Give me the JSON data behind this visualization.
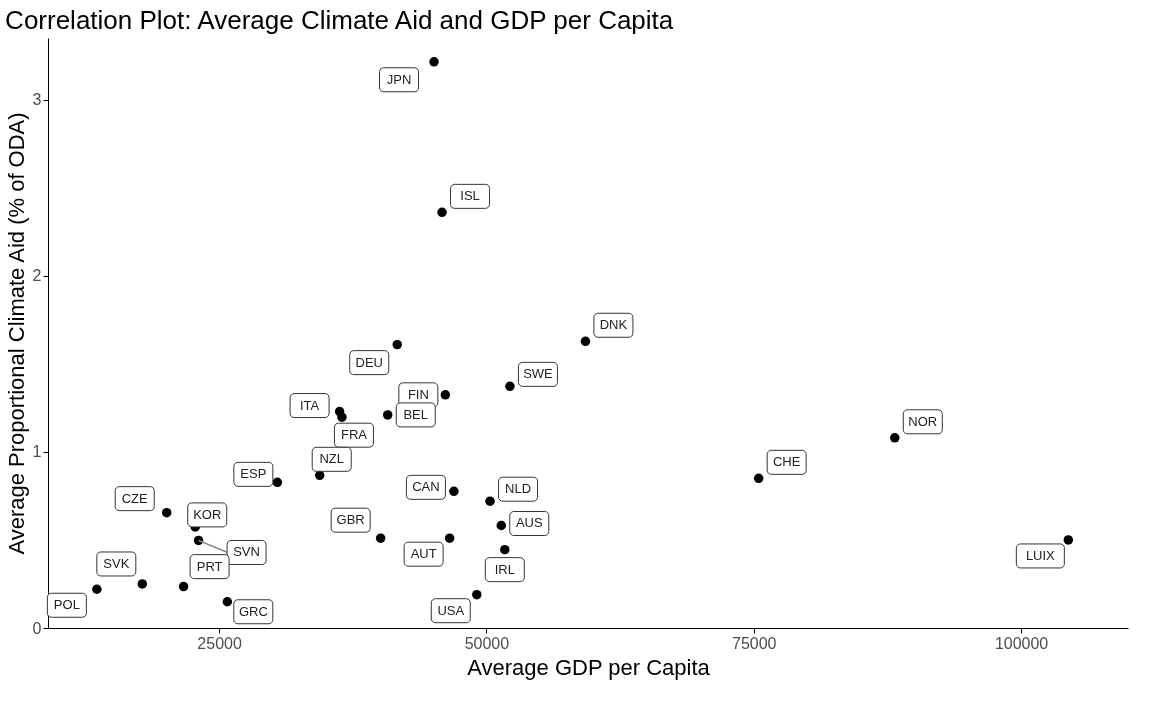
{
  "chart_data": {
    "type": "scatter",
    "title": "Correlation Plot: Average Climate Aid and GDP per Capita",
    "xlabel": "Average GDP per Capita",
    "ylabel": "Average Proportional Climate Aid (% of ODA)",
    "x": [
      45100,
      45850,
      59260,
      41660,
      52200,
      46160,
      36270,
      40770,
      36490,
      88190,
      75460,
      34410,
      46960,
      30450,
      50340,
      20100,
      22770,
      51390,
      40110,
      46560,
      104420,
      23080,
      51720,
      17820,
      21680,
      13570,
      49100,
      25770
    ],
    "series": [
      {
        "color": "#000000",
        "values": [
          3.215,
          2.36,
          1.628,
          1.609,
          1.372,
          1.324,
          1.229,
          1.21,
          1.197,
          1.08,
          0.85,
          0.867,
          0.776,
          0.827,
          0.72,
          0.655,
          0.574,
          0.582,
          0.51,
          0.51,
          0.5,
          0.497,
          0.445,
          0.25,
          0.235,
          0.22,
          0.189,
          0.149
        ],
        "value_labels": [
          "JPN",
          "ISL",
          "DNK",
          "DEU",
          "SWE",
          "FIN",
          "ITA",
          "BEL",
          "FRA",
          "NOR",
          "CHE",
          "NZL",
          "CAN",
          "ESP",
          "NLD",
          "CZE",
          "KOR",
          "AUS",
          "GBR",
          "AUT",
          "LUIX",
          "SVN",
          "IRL",
          "SVK",
          "PRT",
          "POL",
          "USA",
          "GRC"
        ]
      }
    ],
    "xlim": [
      9000,
      110000
    ],
    "xticks": [
      {
        "value": 25000,
        "label": "25000"
      },
      {
        "value": 50000,
        "label": "50000"
      },
      {
        "value": 75000,
        "label": "75000"
      },
      {
        "value": 100000,
        "label": "100000"
      }
    ],
    "ylim": [
      0,
      3.35
    ],
    "yticks": [
      {
        "value": 0,
        "label": "0"
      },
      {
        "value": 1,
        "label": "1"
      },
      {
        "value": 2,
        "label": "2"
      },
      {
        "value": 3,
        "label": "3"
      }
    ],
    "grid": false,
    "marker": "circle"
  }
}
